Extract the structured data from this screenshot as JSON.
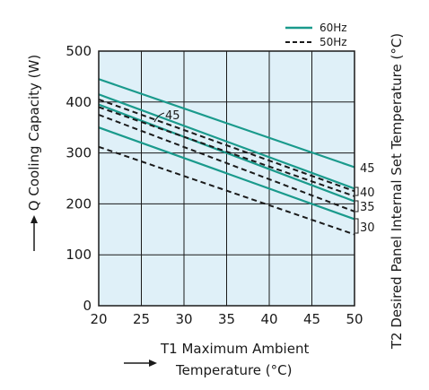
{
  "chart_data": {
    "type": "line",
    "xlabel_line1": "T1 Maximum Ambient",
    "xlabel_line2": "Temperature (°C)",
    "ylabel": "Q Cooling Capacity (W)",
    "y2label": "T2 Desired Panel Internal Set Temperature (°C)",
    "xlim": [
      20,
      50
    ],
    "ylim": [
      0,
      500
    ],
    "x_ticks": [
      20,
      25,
      30,
      35,
      40,
      45,
      50
    ],
    "y_ticks": [
      0,
      100,
      200,
      300,
      400,
      500
    ],
    "grid": true,
    "legend_position": "top-right",
    "legend": [
      {
        "label": "60Hz",
        "style": "solid",
        "color": "#1a9a8c"
      },
      {
        "label": "50Hz",
        "style": "dashed",
        "color": "#1a1a1a"
      }
    ],
    "series": [
      {
        "legend": "60Hz",
        "t2": "45",
        "x": [
          20,
          50
        ],
        "y": [
          445,
          272
        ]
      },
      {
        "legend": "60Hz",
        "t2": "40",
        "x": [
          20,
          50
        ],
        "y": [
          415,
          230
        ]
      },
      {
        "legend": "60Hz",
        "t2": "35",
        "x": [
          20,
          50
        ],
        "y": [
          395,
          205
        ]
      },
      {
        "legend": "60Hz",
        "t2": "30",
        "x": [
          20,
          50
        ],
        "y": [
          350,
          170
        ]
      },
      {
        "legend": "50Hz",
        "t2": "45",
        "x": [
          20,
          50
        ],
        "y": [
          405,
          225
        ]
      },
      {
        "legend": "50Hz",
        "t2": "40",
        "x": [
          20,
          50
        ],
        "y": [
          390,
          215
        ]
      },
      {
        "legend": "50Hz",
        "t2": "35",
        "x": [
          20,
          50
        ],
        "y": [
          375,
          185
        ]
      },
      {
        "legend": "50Hz",
        "t2": "30",
        "x": [
          20,
          50
        ],
        "y": [
          312,
          140
        ]
      }
    ],
    "annotations": {
      "curve_label": "45",
      "right_labels": [
        "45",
        "40",
        "35",
        "30"
      ]
    }
  },
  "colors": {
    "plot_background": "#dff0f8",
    "grid": "#1a1a1a",
    "solid_series": "#1a9a8c",
    "dashed_series": "#1a1a1a"
  }
}
